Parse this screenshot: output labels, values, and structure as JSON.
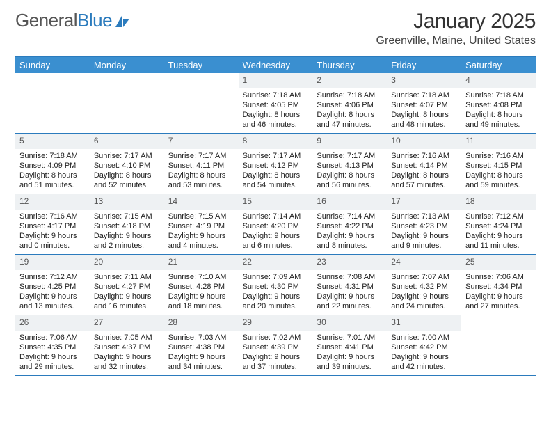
{
  "brand": {
    "name1": "General",
    "name2": "Blue",
    "logo_color": "#2b7bbd"
  },
  "title": "January 2025",
  "location": "Greenville, Maine, United States",
  "header_bg": "#3a8fd0",
  "border_color": "#2b7bbd",
  "daynum_bg": "#eef1f3",
  "day_names": [
    "Sunday",
    "Monday",
    "Tuesday",
    "Wednesday",
    "Thursday",
    "Friday",
    "Saturday"
  ],
  "weeks": [
    [
      {
        "n": "",
        "sr": "",
        "ss": "",
        "dl": ""
      },
      {
        "n": "",
        "sr": "",
        "ss": "",
        "dl": ""
      },
      {
        "n": "",
        "sr": "",
        "ss": "",
        "dl": ""
      },
      {
        "n": "1",
        "sr": "Sunrise: 7:18 AM",
        "ss": "Sunset: 4:05 PM",
        "dl": "Daylight: 8 hours and 46 minutes."
      },
      {
        "n": "2",
        "sr": "Sunrise: 7:18 AM",
        "ss": "Sunset: 4:06 PM",
        "dl": "Daylight: 8 hours and 47 minutes."
      },
      {
        "n": "3",
        "sr": "Sunrise: 7:18 AM",
        "ss": "Sunset: 4:07 PM",
        "dl": "Daylight: 8 hours and 48 minutes."
      },
      {
        "n": "4",
        "sr": "Sunrise: 7:18 AM",
        "ss": "Sunset: 4:08 PM",
        "dl": "Daylight: 8 hours and 49 minutes."
      }
    ],
    [
      {
        "n": "5",
        "sr": "Sunrise: 7:18 AM",
        "ss": "Sunset: 4:09 PM",
        "dl": "Daylight: 8 hours and 51 minutes."
      },
      {
        "n": "6",
        "sr": "Sunrise: 7:17 AM",
        "ss": "Sunset: 4:10 PM",
        "dl": "Daylight: 8 hours and 52 minutes."
      },
      {
        "n": "7",
        "sr": "Sunrise: 7:17 AM",
        "ss": "Sunset: 4:11 PM",
        "dl": "Daylight: 8 hours and 53 minutes."
      },
      {
        "n": "8",
        "sr": "Sunrise: 7:17 AM",
        "ss": "Sunset: 4:12 PM",
        "dl": "Daylight: 8 hours and 54 minutes."
      },
      {
        "n": "9",
        "sr": "Sunrise: 7:17 AM",
        "ss": "Sunset: 4:13 PM",
        "dl": "Daylight: 8 hours and 56 minutes."
      },
      {
        "n": "10",
        "sr": "Sunrise: 7:16 AM",
        "ss": "Sunset: 4:14 PM",
        "dl": "Daylight: 8 hours and 57 minutes."
      },
      {
        "n": "11",
        "sr": "Sunrise: 7:16 AM",
        "ss": "Sunset: 4:15 PM",
        "dl": "Daylight: 8 hours and 59 minutes."
      }
    ],
    [
      {
        "n": "12",
        "sr": "Sunrise: 7:16 AM",
        "ss": "Sunset: 4:17 PM",
        "dl": "Daylight: 9 hours and 0 minutes."
      },
      {
        "n": "13",
        "sr": "Sunrise: 7:15 AM",
        "ss": "Sunset: 4:18 PM",
        "dl": "Daylight: 9 hours and 2 minutes."
      },
      {
        "n": "14",
        "sr": "Sunrise: 7:15 AM",
        "ss": "Sunset: 4:19 PM",
        "dl": "Daylight: 9 hours and 4 minutes."
      },
      {
        "n": "15",
        "sr": "Sunrise: 7:14 AM",
        "ss": "Sunset: 4:20 PM",
        "dl": "Daylight: 9 hours and 6 minutes."
      },
      {
        "n": "16",
        "sr": "Sunrise: 7:14 AM",
        "ss": "Sunset: 4:22 PM",
        "dl": "Daylight: 9 hours and 8 minutes."
      },
      {
        "n": "17",
        "sr": "Sunrise: 7:13 AM",
        "ss": "Sunset: 4:23 PM",
        "dl": "Daylight: 9 hours and 9 minutes."
      },
      {
        "n": "18",
        "sr": "Sunrise: 7:12 AM",
        "ss": "Sunset: 4:24 PM",
        "dl": "Daylight: 9 hours and 11 minutes."
      }
    ],
    [
      {
        "n": "19",
        "sr": "Sunrise: 7:12 AM",
        "ss": "Sunset: 4:25 PM",
        "dl": "Daylight: 9 hours and 13 minutes."
      },
      {
        "n": "20",
        "sr": "Sunrise: 7:11 AM",
        "ss": "Sunset: 4:27 PM",
        "dl": "Daylight: 9 hours and 16 minutes."
      },
      {
        "n": "21",
        "sr": "Sunrise: 7:10 AM",
        "ss": "Sunset: 4:28 PM",
        "dl": "Daylight: 9 hours and 18 minutes."
      },
      {
        "n": "22",
        "sr": "Sunrise: 7:09 AM",
        "ss": "Sunset: 4:30 PM",
        "dl": "Daylight: 9 hours and 20 minutes."
      },
      {
        "n": "23",
        "sr": "Sunrise: 7:08 AM",
        "ss": "Sunset: 4:31 PM",
        "dl": "Daylight: 9 hours and 22 minutes."
      },
      {
        "n": "24",
        "sr": "Sunrise: 7:07 AM",
        "ss": "Sunset: 4:32 PM",
        "dl": "Daylight: 9 hours and 24 minutes."
      },
      {
        "n": "25",
        "sr": "Sunrise: 7:06 AM",
        "ss": "Sunset: 4:34 PM",
        "dl": "Daylight: 9 hours and 27 minutes."
      }
    ],
    [
      {
        "n": "26",
        "sr": "Sunrise: 7:06 AM",
        "ss": "Sunset: 4:35 PM",
        "dl": "Daylight: 9 hours and 29 minutes."
      },
      {
        "n": "27",
        "sr": "Sunrise: 7:05 AM",
        "ss": "Sunset: 4:37 PM",
        "dl": "Daylight: 9 hours and 32 minutes."
      },
      {
        "n": "28",
        "sr": "Sunrise: 7:03 AM",
        "ss": "Sunset: 4:38 PM",
        "dl": "Daylight: 9 hours and 34 minutes."
      },
      {
        "n": "29",
        "sr": "Sunrise: 7:02 AM",
        "ss": "Sunset: 4:39 PM",
        "dl": "Daylight: 9 hours and 37 minutes."
      },
      {
        "n": "30",
        "sr": "Sunrise: 7:01 AM",
        "ss": "Sunset: 4:41 PM",
        "dl": "Daylight: 9 hours and 39 minutes."
      },
      {
        "n": "31",
        "sr": "Sunrise: 7:00 AM",
        "ss": "Sunset: 4:42 PM",
        "dl": "Daylight: 9 hours and 42 minutes."
      },
      {
        "n": "",
        "sr": "",
        "ss": "",
        "dl": ""
      }
    ]
  ]
}
